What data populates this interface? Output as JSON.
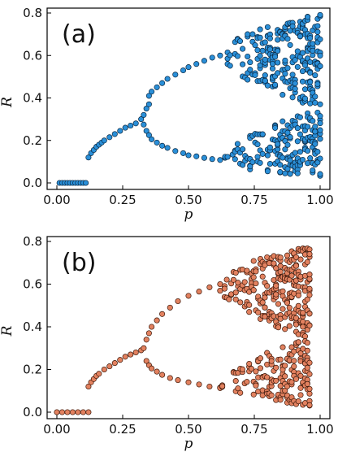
{
  "chart_data": [
    {
      "type": "scatter",
      "panel_label": "(a)",
      "xlabel": "p",
      "ylabel": "R",
      "xlim": [
        0.0,
        1.0
      ],
      "ylim": [
        0.0,
        0.8
      ],
      "xticks": [
        "0.00",
        "0.25",
        "0.50",
        "0.75",
        "1.00"
      ],
      "yticks": [
        "0.0",
        "0.2",
        "0.4",
        "0.6",
        "0.8"
      ],
      "marker_color": "#2a8fd8",
      "marker_edge": "#0a2740",
      "grid": false,
      "series": [
        {
          "points": [
            [
              0.01,
              0.0
            ],
            [
              0.02,
              0.0
            ],
            [
              0.03,
              0.0
            ],
            [
              0.04,
              0.0
            ],
            [
              0.05,
              0.0
            ],
            [
              0.06,
              0.0
            ],
            [
              0.07,
              0.0
            ],
            [
              0.08,
              0.0
            ],
            [
              0.09,
              0.0
            ],
            [
              0.1,
              0.0
            ],
            [
              0.11,
              0.0
            ],
            [
              0.12,
              0.12
            ],
            [
              0.13,
              0.14
            ],
            [
              0.14,
              0.155
            ],
            [
              0.15,
              0.17
            ],
            [
              0.16,
              0.18
            ],
            [
              0.17,
              0.19
            ],
            [
              0.18,
              0.2
            ],
            [
              0.2,
              0.215
            ],
            [
              0.22,
              0.23
            ],
            [
              0.24,
              0.245
            ],
            [
              0.26,
              0.26
            ],
            [
              0.28,
              0.27
            ],
            [
              0.3,
              0.28
            ],
            [
              0.32,
              0.3
            ],
            [
              0.33,
              0.32
            ],
            [
              0.33,
              0.275
            ],
            [
              0.34,
              0.35
            ],
            [
              0.35,
              0.37
            ],
            [
              0.35,
              0.41
            ],
            [
              0.36,
              0.43
            ],
            [
              0.34,
              0.245
            ],
            [
              0.35,
              0.225
            ],
            [
              0.36,
              0.205
            ],
            [
              0.38,
              0.45
            ],
            [
              0.4,
              0.47
            ],
            [
              0.42,
              0.49
            ],
            [
              0.45,
              0.51
            ],
            [
              0.48,
              0.53
            ],
            [
              0.5,
              0.545
            ],
            [
              0.53,
              0.56
            ],
            [
              0.56,
              0.575
            ],
            [
              0.59,
              0.59
            ],
            [
              0.62,
              0.6
            ],
            [
              0.38,
              0.19
            ],
            [
              0.4,
              0.175
            ],
            [
              0.42,
              0.165
            ],
            [
              0.45,
              0.15
            ],
            [
              0.48,
              0.14
            ],
            [
              0.5,
              0.13
            ],
            [
              0.53,
              0.125
            ],
            [
              0.56,
              0.118
            ],
            [
              0.59,
              0.112
            ],
            [
              0.62,
              0.108
            ]
          ],
          "chaotic_band": {
            "p_range": [
              0.62,
              1.0
            ],
            "upper_R": [
              0.6,
              0.795
            ],
            "lower_R": [
              0.1,
              0.03
            ],
            "inner_gap_R": [
              0.4,
              0.26
            ]
          }
        }
      ]
    },
    {
      "type": "scatter",
      "panel_label": "(b)",
      "xlabel": "p",
      "ylabel": "R",
      "xlim": [
        0.0,
        1.0
      ],
      "ylim": [
        0.0,
        0.8
      ],
      "xticks": [
        "0.00",
        "0.25",
        "0.50",
        "0.75",
        "1.00"
      ],
      "yticks": [
        "0.0",
        "0.2",
        "0.4",
        "0.6",
        "0.8"
      ],
      "marker_color": "#e2815f",
      "marker_edge": "#3a1608",
      "grid": false,
      "series": [
        {
          "points": [
            [
              0.0,
              0.0
            ],
            [
              0.02,
              0.0
            ],
            [
              0.04,
              0.0
            ],
            [
              0.06,
              0.0
            ],
            [
              0.08,
              0.0
            ],
            [
              0.1,
              0.0
            ],
            [
              0.12,
              0.0
            ],
            [
              0.12,
              0.12
            ],
            [
              0.13,
              0.14
            ],
            [
              0.14,
              0.155
            ],
            [
              0.15,
              0.17
            ],
            [
              0.16,
              0.18
            ],
            [
              0.18,
              0.2
            ],
            [
              0.2,
              0.215
            ],
            [
              0.22,
              0.23
            ],
            [
              0.24,
              0.245
            ],
            [
              0.26,
              0.26
            ],
            [
              0.28,
              0.27
            ],
            [
              0.3,
              0.28
            ],
            [
              0.32,
              0.29
            ],
            [
              0.33,
              0.3
            ],
            [
              0.34,
              0.34
            ],
            [
              0.35,
              0.37
            ],
            [
              0.36,
              0.4
            ],
            [
              0.38,
              0.43
            ],
            [
              0.4,
              0.46
            ],
            [
              0.43,
              0.49
            ],
            [
              0.46,
              0.52
            ],
            [
              0.5,
              0.545
            ],
            [
              0.54,
              0.565
            ],
            [
              0.58,
              0.585
            ],
            [
              0.62,
              0.6
            ],
            [
              0.34,
              0.24
            ],
            [
              0.35,
              0.22
            ],
            [
              0.36,
              0.205
            ],
            [
              0.38,
              0.19
            ],
            [
              0.4,
              0.175
            ],
            [
              0.43,
              0.16
            ],
            [
              0.46,
              0.15
            ],
            [
              0.5,
              0.14
            ],
            [
              0.54,
              0.13
            ],
            [
              0.58,
              0.12
            ],
            [
              0.62,
              0.115
            ]
          ],
          "chaotic_band": {
            "p_range": [
              0.62,
              0.96
            ],
            "upper_R": [
              0.6,
              0.78
            ],
            "lower_R": [
              0.11,
              0.03
            ],
            "inner_gap_R": [
              0.4,
              0.2
            ]
          }
        }
      ]
    }
  ]
}
